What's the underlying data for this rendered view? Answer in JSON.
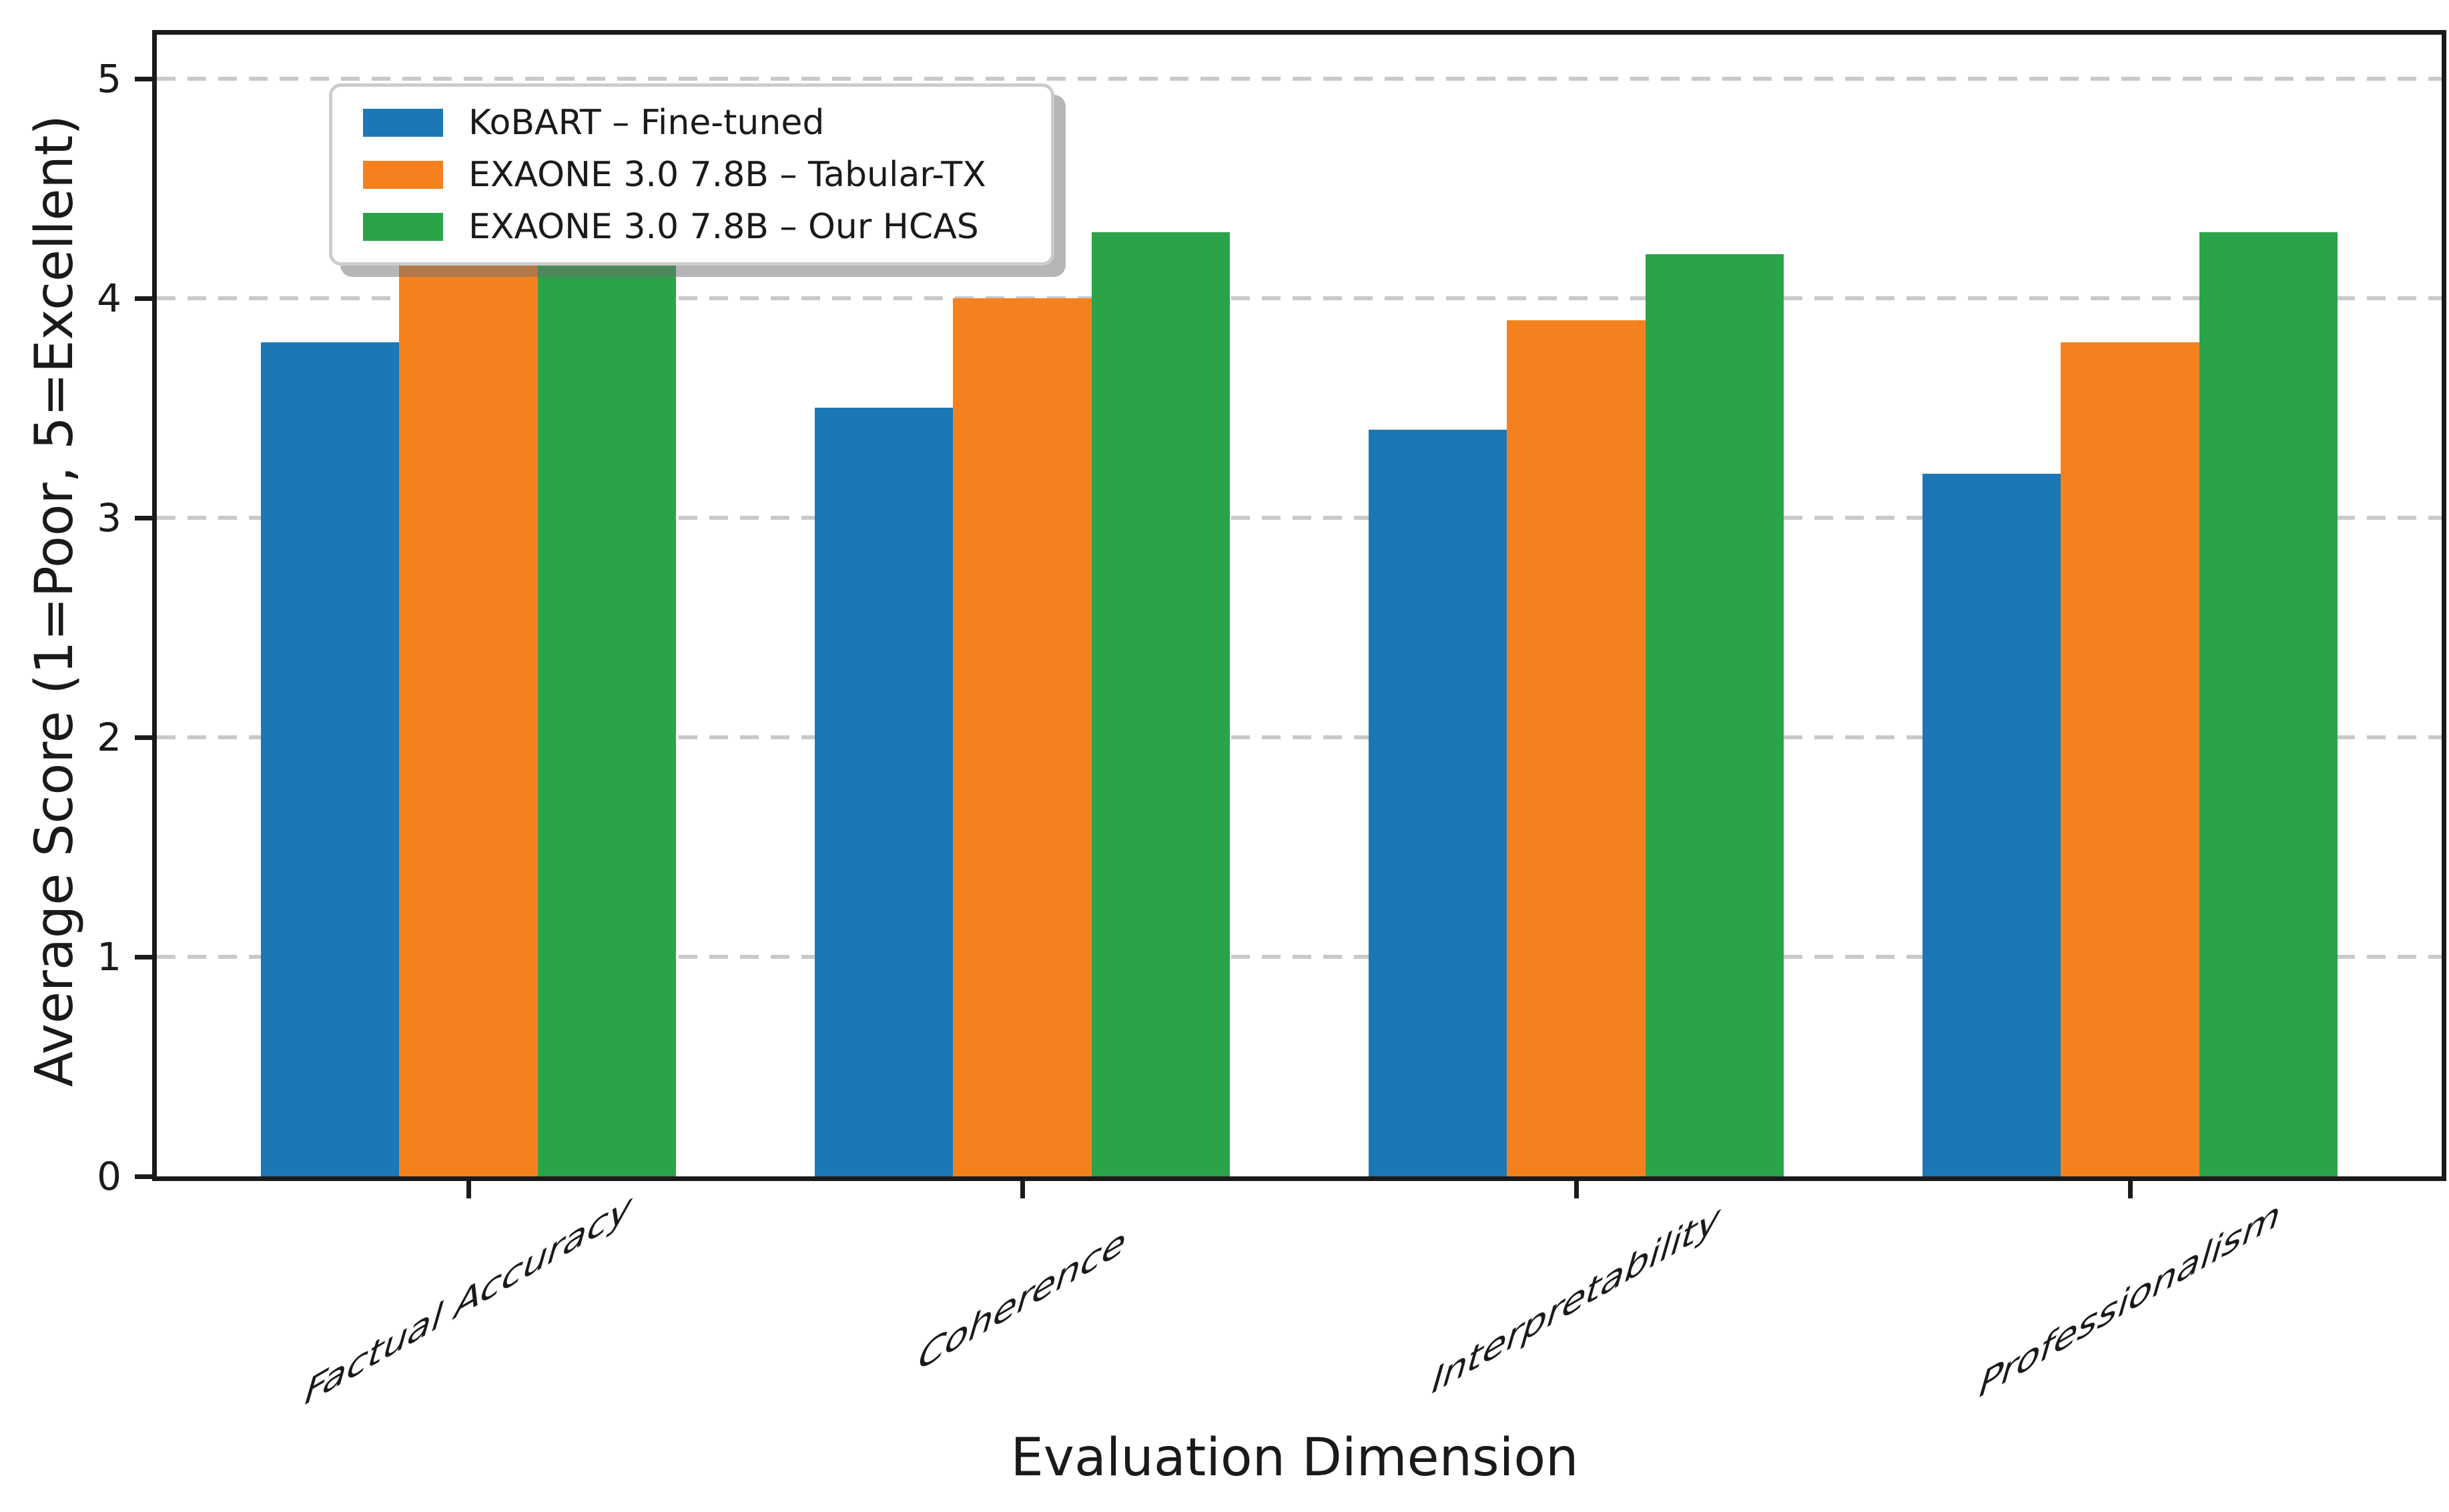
{
  "chart_data": {
    "type": "bar",
    "title": "",
    "xlabel": "Evaluation Dimension",
    "ylabel": "Average Score (1=Poor, 5=Excellent)",
    "categories": [
      "Factual Accuracy",
      "Coherence",
      "Interpretability",
      "Professionalism"
    ],
    "series": [
      {
        "name": "KoBART – Fine-tuned",
        "color": "#1b78b4",
        "values": [
          3.8,
          3.5,
          3.4,
          3.2
        ]
      },
      {
        "name": "EXAONE 3.0 7.8B – Tabular-TX",
        "color": "#f5811e",
        "values": [
          4.2,
          4.0,
          3.9,
          3.8
        ]
      },
      {
        "name": "EXAONE 3.0 7.8B – Our HCAS",
        "color": "#2aa349",
        "values": [
          4.25,
          4.3,
          4.2,
          4.3
        ]
      }
    ],
    "ylim": [
      0,
      5.2
    ],
    "yticks": [
      0,
      1,
      2,
      3,
      4,
      5
    ],
    "ytick_labels": [
      "0",
      "1",
      "2",
      "3",
      "4",
      "5"
    ],
    "bar_width_units": 0.25,
    "xlim": [
      -0.5625,
      3.5625
    ],
    "grid": "horizontal-dashed",
    "grid_color": "#c9c9c9",
    "legend_position": "upper-left",
    "x_tick_label_rotation_deg": 30
  },
  "colors": {
    "spine": "#1a1a1a",
    "background": "#ffffff",
    "legend_border": "#cccccc",
    "legend_shadow": "rgba(110,110,110,0.5)"
  }
}
